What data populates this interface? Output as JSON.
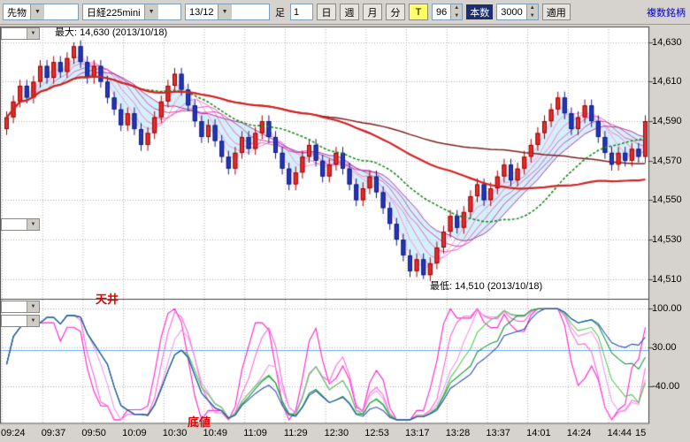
{
  "toolbar": {
    "category_combo": "先物",
    "symbol_combo": "日経225mini",
    "contract_combo": "13/12",
    "bar_type_label": "足",
    "minute_value": "1",
    "period_buttons": [
      "日",
      "週",
      "月",
      "分"
    ],
    "tick_button": "T",
    "bars_value": "96",
    "bars_label": "本数",
    "interval_value": "3000",
    "apply_button": "適用",
    "multi_symbol_link": "複数銘柄"
  },
  "annotations": {
    "max_label": "最大: 14,630 (2013/10/18)",
    "min_label": "最低: 14,510 (2013/10/18)",
    "ceiling_label": "天井",
    "floor_label": "底値"
  },
  "axes": {
    "price_labels": [
      "14,630",
      "14,610",
      "14,590",
      "14,570",
      "14,550",
      "14,530",
      "14,510"
    ],
    "price_values": [
      14630,
      14610,
      14590,
      14570,
      14550,
      14530,
      14510
    ],
    "oscillator_labels": [
      "100.00",
      "30.00",
      "-40.00"
    ],
    "oscillator_values": [
      100,
      30,
      -40
    ],
    "time_labels": [
      "09:24",
      "09:37",
      "09:50",
      "10:09",
      "10:30",
      "10:49",
      "11:09",
      "11:29",
      "12:30",
      "12:53",
      "13:17",
      "13:28",
      "13:37",
      "14:01",
      "14:24",
      "14:44",
      "15"
    ]
  },
  "chart_data": {
    "type": "candlestick",
    "symbol": "日経225mini",
    "contract_month": "13/12",
    "bar_interval": "1分",
    "bar_count": 96,
    "session_date": "2013/10/18",
    "price_high": 14630,
    "price_low": 14510,
    "first_open": 14586,
    "close": [
      14592,
      14600,
      14608,
      14602,
      14610,
      14618,
      14612,
      14620,
      14615,
      14622,
      14628,
      14620,
      14612,
      14618,
      14610,
      14602,
      14596,
      14588,
      14594,
      14586,
      14578,
      14584,
      14592,
      14600,
      14608,
      14614,
      14606,
      14598,
      14590,
      14582,
      14588,
      14580,
      14572,
      14566,
      14574,
      14582,
      14576,
      14584,
      14590,
      14582,
      14574,
      14566,
      14558,
      14564,
      14572,
      14578,
      14570,
      14562,
      14568,
      14574,
      14566,
      14558,
      14550,
      14556,
      14562,
      14554,
      14546,
      14538,
      14530,
      14522,
      14514,
      14520,
      14512,
      14518,
      14526,
      14534,
      14542,
      14536,
      14544,
      14552,
      14558,
      14550,
      14556,
      14562,
      14568,
      14560,
      14566,
      14572,
      14578,
      14584,
      14590,
      14596,
      14602,
      14594,
      14586,
      14592,
      14598,
      14590,
      14582,
      14574,
      14568,
      14574,
      14570,
      14576,
      14572,
      14590
    ],
    "wick": 3,
    "max_point": {
      "index": 10,
      "price": 14630
    },
    "min_point": {
      "index": 62,
      "price": 14510
    },
    "up_color": "#e03030",
    "up_border": "#a00000",
    "down_color": "#2438b8",
    "down_border": "#101a80",
    "overlays": {
      "ma_fan_periods": [
        3,
        5,
        7,
        9,
        11,
        13
      ],
      "ma_fan_colors": [
        "#ffb3e6",
        "#ff99dd",
        "#f07fd0",
        "#e066c0",
        "#cc4db0",
        "#b333a0"
      ],
      "band_fill": "rgba(170,225,245,0.5)",
      "ma_green": {
        "period": 21,
        "color": "#1d8a1d"
      },
      "ma_red": {
        "period": 45,
        "color": "#d42222"
      },
      "ma_maroon": {
        "period": 75,
        "color": "#7a1f1f"
      }
    },
    "oscillator": {
      "type": "stochastic-fan",
      "range": [
        -100,
        100
      ],
      "level_line": 25,
      "level_line_color": "#66aaff",
      "series": [
        {
          "period": 5,
          "color": "#ff22cc"
        },
        {
          "period": 9,
          "color": "#ff66dd"
        },
        {
          "period": 13,
          "color": "#ee99ee"
        },
        {
          "period": 17,
          "color": "#55cc55"
        },
        {
          "period": 25,
          "color": "#169a3c"
        },
        {
          "period": 33,
          "color": "#2a52be"
        }
      ]
    }
  }
}
